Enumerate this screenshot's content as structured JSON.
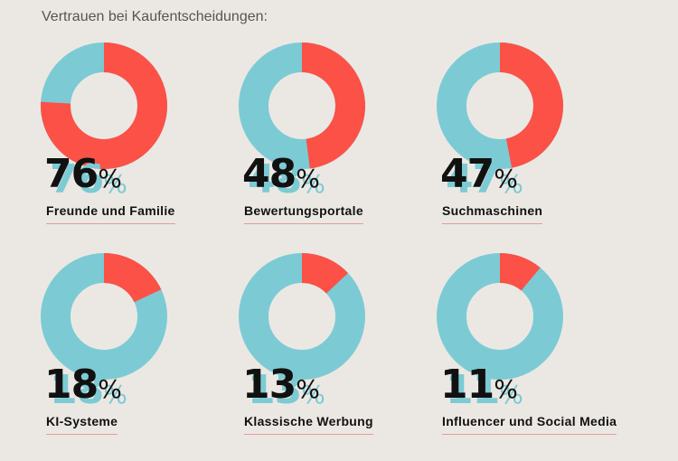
{
  "title": "Vertrauen bei Kaufentscheidungen:",
  "colors": {
    "highlight": "#fb5146",
    "rest": "#7ccbd4",
    "background": "#ebe8e4"
  },
  "chart_data": {
    "type": "pie",
    "variant": "donut",
    "title": "Vertrauen bei Kaufentscheidungen:",
    "unit": "%",
    "categories": [
      "Freunde und Familie",
      "Bewertungsportale",
      "Suchmaschinen",
      "KI-Systeme",
      "Klassische Werbung",
      "Influencer und Social Media"
    ],
    "values": [
      76,
      48,
      47,
      18,
      13,
      11
    ],
    "percent_sign": "%"
  }
}
